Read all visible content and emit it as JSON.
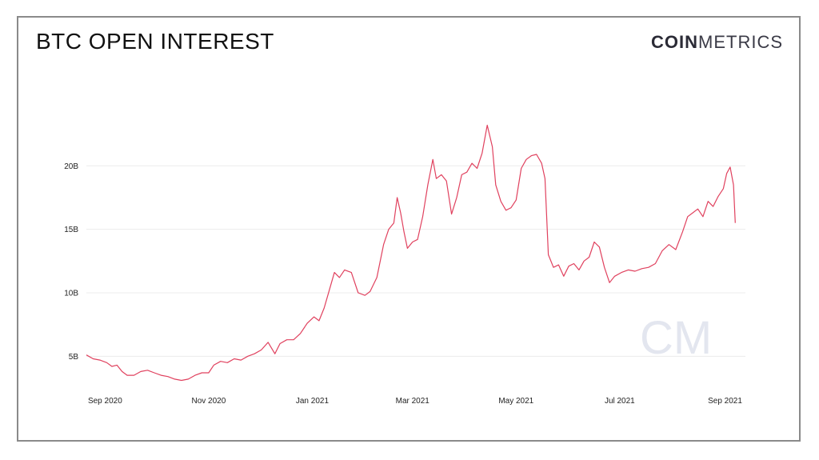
{
  "header": {
    "title": "BTC OPEN INTEREST",
    "brand_strong": "COIN",
    "brand_light": "METRICS",
    "watermark": "CM"
  },
  "colors": {
    "line": "#e0415e",
    "grid": "#ececec",
    "frame": "#8a8a8a"
  },
  "chart_data": {
    "type": "line",
    "title": "BTC OPEN INTEREST",
    "xlabel": "",
    "ylabel": "",
    "unit": "B",
    "xlim": [
      "2020-08-21",
      "2021-09-13"
    ],
    "ylim": [
      2.5,
      25.5
    ],
    "yticks": [
      {
        "value": 5,
        "label": "5B"
      },
      {
        "value": 10,
        "label": "10B"
      },
      {
        "value": 15,
        "label": "15B"
      },
      {
        "value": 20,
        "label": "20B"
      }
    ],
    "xticks": [
      {
        "date": "2020-09-01",
        "label": "Sep 2020"
      },
      {
        "date": "2020-11-01",
        "label": "Nov 2020"
      },
      {
        "date": "2021-01-01",
        "label": "Jan 2021"
      },
      {
        "date": "2021-03-01",
        "label": "Mar 2021"
      },
      {
        "date": "2021-05-01",
        "label": "May 2021"
      },
      {
        "date": "2021-07-01",
        "label": "Jul 2021"
      },
      {
        "date": "2021-09-01",
        "label": "Sep 2021"
      }
    ],
    "grid": true,
    "series": [
      {
        "values": [
          [
            "2020-08-21",
            5.1
          ],
          [
            "2020-08-25",
            4.8
          ],
          [
            "2020-08-29",
            4.7
          ],
          [
            "2020-09-02",
            4.5
          ],
          [
            "2020-09-05",
            4.2
          ],
          [
            "2020-09-08",
            4.3
          ],
          [
            "2020-09-11",
            3.8
          ],
          [
            "2020-09-14",
            3.5
          ],
          [
            "2020-09-18",
            3.5
          ],
          [
            "2020-09-22",
            3.8
          ],
          [
            "2020-09-26",
            3.9
          ],
          [
            "2020-09-30",
            3.7
          ],
          [
            "2020-10-04",
            3.5
          ],
          [
            "2020-10-08",
            3.4
          ],
          [
            "2020-10-12",
            3.2
          ],
          [
            "2020-10-16",
            3.1
          ],
          [
            "2020-10-20",
            3.2
          ],
          [
            "2020-10-24",
            3.5
          ],
          [
            "2020-10-28",
            3.7
          ],
          [
            "2020-11-01",
            3.7
          ],
          [
            "2020-11-04",
            4.3
          ],
          [
            "2020-11-08",
            4.6
          ],
          [
            "2020-11-12",
            4.5
          ],
          [
            "2020-11-16",
            4.8
          ],
          [
            "2020-11-20",
            4.7
          ],
          [
            "2020-11-24",
            5.0
          ],
          [
            "2020-11-28",
            5.2
          ],
          [
            "2020-12-02",
            5.5
          ],
          [
            "2020-12-06",
            6.1
          ],
          [
            "2020-12-10",
            5.2
          ],
          [
            "2020-12-13",
            6.0
          ],
          [
            "2020-12-17",
            6.3
          ],
          [
            "2020-12-21",
            6.3
          ],
          [
            "2020-12-25",
            6.8
          ],
          [
            "2020-12-29",
            7.6
          ],
          [
            "2021-01-02",
            8.1
          ],
          [
            "2021-01-05",
            7.8
          ],
          [
            "2021-01-08",
            8.8
          ],
          [
            "2021-01-11",
            10.2
          ],
          [
            "2021-01-14",
            11.6
          ],
          [
            "2021-01-17",
            11.2
          ],
          [
            "2021-01-20",
            11.8
          ],
          [
            "2021-01-24",
            11.6
          ],
          [
            "2021-01-28",
            10.0
          ],
          [
            "2021-02-01",
            9.8
          ],
          [
            "2021-02-04",
            10.1
          ],
          [
            "2021-02-08",
            11.2
          ],
          [
            "2021-02-12",
            13.8
          ],
          [
            "2021-02-15",
            15.0
          ],
          [
            "2021-02-18",
            15.5
          ],
          [
            "2021-02-20",
            17.5
          ],
          [
            "2021-02-22",
            16.3
          ],
          [
            "2021-02-24",
            14.8
          ],
          [
            "2021-02-26",
            13.5
          ],
          [
            "2021-03-01",
            14.0
          ],
          [
            "2021-03-04",
            14.2
          ],
          [
            "2021-03-07",
            16.0
          ],
          [
            "2021-03-10",
            18.5
          ],
          [
            "2021-03-13",
            20.5
          ],
          [
            "2021-03-15",
            19.0
          ],
          [
            "2021-03-18",
            19.3
          ],
          [
            "2021-03-21",
            18.8
          ],
          [
            "2021-03-24",
            16.2
          ],
          [
            "2021-03-27",
            17.5
          ],
          [
            "2021-03-30",
            19.3
          ],
          [
            "2021-04-02",
            19.5
          ],
          [
            "2021-04-05",
            20.2
          ],
          [
            "2021-04-08",
            19.8
          ],
          [
            "2021-04-11",
            21.0
          ],
          [
            "2021-04-14",
            23.2
          ],
          [
            "2021-04-17",
            21.5
          ],
          [
            "2021-04-19",
            18.5
          ],
          [
            "2021-04-22",
            17.2
          ],
          [
            "2021-04-25",
            16.5
          ],
          [
            "2021-04-28",
            16.7
          ],
          [
            "2021-05-01",
            17.3
          ],
          [
            "2021-05-04",
            19.8
          ],
          [
            "2021-05-07",
            20.5
          ],
          [
            "2021-05-10",
            20.8
          ],
          [
            "2021-05-13",
            20.9
          ],
          [
            "2021-05-16",
            20.2
          ],
          [
            "2021-05-18",
            19.0
          ],
          [
            "2021-05-20",
            13.0
          ],
          [
            "2021-05-23",
            12.0
          ],
          [
            "2021-05-26",
            12.2
          ],
          [
            "2021-05-29",
            11.3
          ],
          [
            "2021-06-01",
            12.1
          ],
          [
            "2021-06-04",
            12.3
          ],
          [
            "2021-06-07",
            11.8
          ],
          [
            "2021-06-10",
            12.5
          ],
          [
            "2021-06-13",
            12.8
          ],
          [
            "2021-06-16",
            14.0
          ],
          [
            "2021-06-19",
            13.6
          ],
          [
            "2021-06-22",
            12.0
          ],
          [
            "2021-06-25",
            10.8
          ],
          [
            "2021-06-28",
            11.3
          ],
          [
            "2021-07-02",
            11.6
          ],
          [
            "2021-07-06",
            11.8
          ],
          [
            "2021-07-10",
            11.7
          ],
          [
            "2021-07-14",
            11.9
          ],
          [
            "2021-07-18",
            12.0
          ],
          [
            "2021-07-22",
            12.3
          ],
          [
            "2021-07-26",
            13.3
          ],
          [
            "2021-07-30",
            13.8
          ],
          [
            "2021-08-03",
            13.4
          ],
          [
            "2021-08-07",
            14.8
          ],
          [
            "2021-08-10",
            16.0
          ],
          [
            "2021-08-13",
            16.3
          ],
          [
            "2021-08-16",
            16.6
          ],
          [
            "2021-08-19",
            16.0
          ],
          [
            "2021-08-22",
            17.2
          ],
          [
            "2021-08-25",
            16.8
          ],
          [
            "2021-08-28",
            17.6
          ],
          [
            "2021-08-31",
            18.2
          ],
          [
            "2021-09-02",
            19.4
          ],
          [
            "2021-09-04",
            19.9
          ],
          [
            "2021-09-06",
            18.5
          ],
          [
            "2021-09-07",
            15.5
          ]
        ]
      }
    ]
  }
}
